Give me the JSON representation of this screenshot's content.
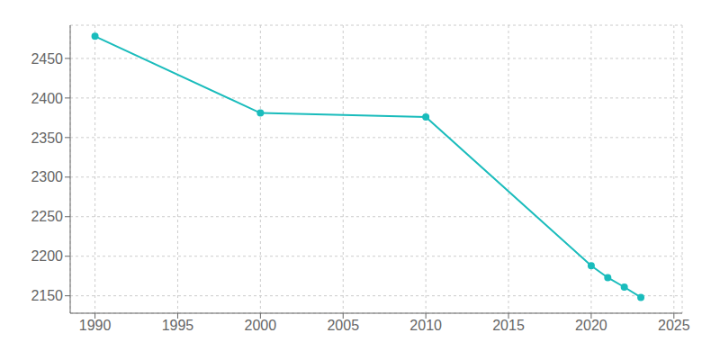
{
  "chart_data": {
    "type": "line",
    "x": [
      1990,
      2000,
      2010,
      2020,
      2021,
      2022,
      2023
    ],
    "values": [
      2478,
      2381,
      2376,
      2188,
      2173,
      2161,
      2148
    ],
    "color": "#1abcbc",
    "marker": "circle",
    "xlim": [
      1988.5,
      2025.5
    ],
    "ylim": [
      2128,
      2492
    ],
    "xticks": [
      1990,
      1995,
      2000,
      2005,
      2010,
      2015,
      2020,
      2025
    ],
    "yticks": [
      2150,
      2200,
      2250,
      2300,
      2350,
      2400,
      2450
    ],
    "grid": true
  }
}
